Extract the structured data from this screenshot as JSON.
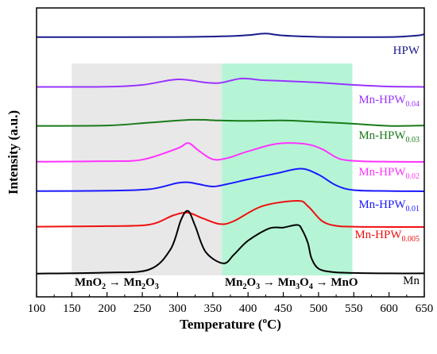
{
  "chart_data": {
    "type": "line",
    "xlabel": "Temperature (",
    "xlabel_sup": "o",
    "xlabel_tail": "C)",
    "ylabel": "Intensity (a.u.)",
    "xlim": [
      100,
      650
    ],
    "x_ticks": [
      100,
      150,
      200,
      250,
      300,
      350,
      400,
      450,
      500,
      550,
      600,
      650
    ],
    "y_ticks_shown": false,
    "legend": "none",
    "regions": [
      {
        "from": 150,
        "to": 363,
        "color": "#e8e8e8",
        "label_parts": [
          "MnO",
          "2",
          " → Mn",
          "2",
          "O",
          "3"
        ]
      },
      {
        "from": 363,
        "to": 548,
        "color": "#b5f5d6",
        "label_parts": [
          "Mn",
          "2",
          "O",
          "3",
          " → Mn",
          "3",
          "O",
          "4",
          "  → MnO"
        ]
      }
    ],
    "series": [
      {
        "name": "HPW",
        "label_main": "HPW",
        "label_sub": "",
        "color": "#1a1a8c",
        "x": [
          100,
          200,
          300,
          370,
          400,
          425,
          450,
          500,
          560,
          610,
          640,
          650
        ],
        "y": [
          0.5,
          0.5,
          0.8,
          2.5,
          5,
          8.5,
          4,
          1,
          0.5,
          1,
          4,
          7
        ]
      },
      {
        "name": "Mn-HPW0.04",
        "label_main": "Mn-HPW",
        "label_sub": "0.04",
        "color": "#9933ff",
        "x": [
          100,
          200,
          250,
          300,
          340,
          360,
          390,
          420,
          450,
          500,
          550,
          600,
          650
        ],
        "y": [
          0.5,
          0.7,
          3,
          10,
          6,
          5.5,
          11,
          9,
          8,
          6,
          3,
          1,
          0.5
        ]
      },
      {
        "name": "Mn-HPW0.03",
        "label_main": "Mn-HPW",
        "label_sub": "0.03",
        "color": "#1a7a1a",
        "x": [
          100,
          200,
          260,
          320,
          360,
          400,
          450,
          500,
          540,
          600,
          650
        ],
        "y": [
          0.5,
          1,
          5,
          9,
          8,
          7.5,
          8,
          6,
          4,
          0.5,
          1
        ]
      },
      {
        "name": "Mn-HPW0.02",
        "label_main": "Mn-HPW",
        "label_sub": "0.02",
        "color": "#ff33ff",
        "x": [
          100,
          200,
          250,
          300,
          315,
          330,
          350,
          370,
          400,
          440,
          480,
          505,
          530,
          560,
          600,
          650
        ],
        "y": [
          0.3,
          1,
          3,
          18,
          25,
          15,
          3.5,
          5,
          14,
          24,
          24,
          17,
          4,
          1,
          0.3,
          0
        ]
      },
      {
        "name": "Mn-HPW0.01",
        "label_main": "Mn-HPW",
        "label_sub": "0.01",
        "color": "#1a1aff",
        "x": [
          100,
          200,
          260,
          300,
          315,
          330,
          350,
          370,
          400,
          440,
          475,
          500,
          525,
          550,
          600,
          650
        ],
        "y": [
          0.3,
          1,
          3.5,
          14,
          15,
          12,
          8,
          12,
          20,
          30,
          38,
          28,
          10,
          2,
          0.5,
          0
        ]
      },
      {
        "name": "Mn-HPW0.005",
        "label_main": "Mn-HPW",
        "label_sub": "0.005",
        "color": "#ee1111",
        "x": [
          100,
          200,
          260,
          295,
          315,
          335,
          360,
          380,
          420,
          470,
          485,
          505,
          525,
          550,
          600,
          650
        ],
        "y": [
          0.5,
          1.5,
          4,
          20,
          24,
          15,
          5,
          10,
          35,
          44,
          35,
          10,
          2,
          0.5,
          0,
          0
        ]
      },
      {
        "name": "Mn",
        "label_main": "Mn",
        "label_sub": "",
        "color": "#000000",
        "x": [
          100,
          200,
          260,
          290,
          305,
          315,
          325,
          340,
          365,
          380,
          400,
          430,
          450,
          470,
          477,
          485,
          490,
          500,
          520,
          550,
          600,
          650
        ],
        "y": [
          0.3,
          1.5,
          5,
          28,
          62,
          72,
          55,
          25,
          12,
          22,
          38,
          52,
          53,
          56,
          50,
          35,
          18,
          6,
          2,
          1,
          0.5,
          0.5
        ]
      }
    ]
  }
}
